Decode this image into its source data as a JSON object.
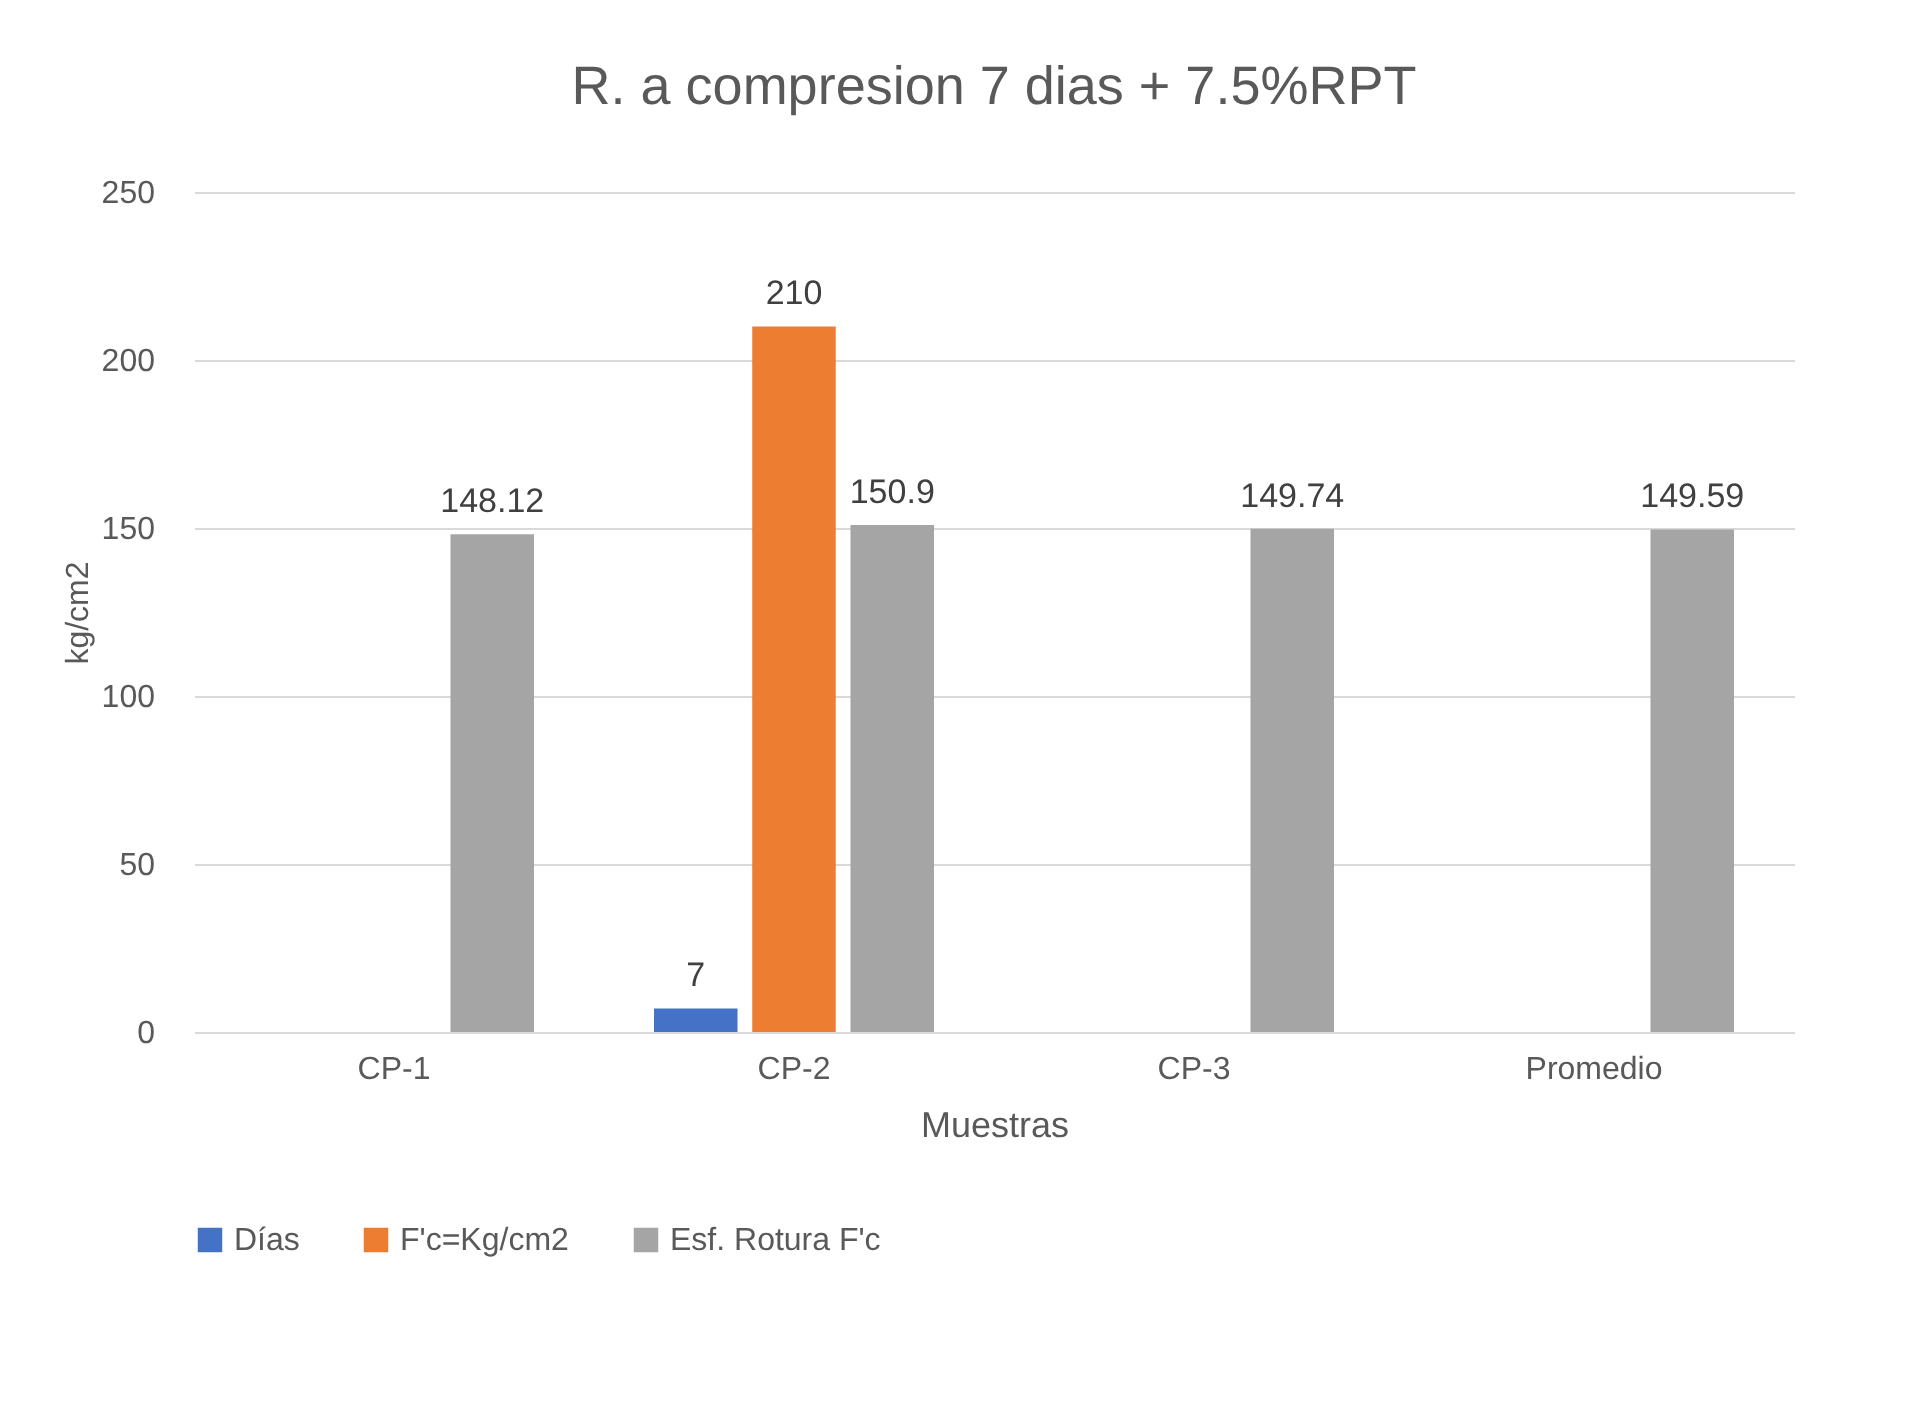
{
  "chart_data": {
    "type": "bar",
    "title": "R. a compresion 7 dias + 7.5%RPT",
    "xlabel": "Muestras",
    "ylabel": "kg/cm2",
    "categories": [
      "CP-1",
      "CP-2",
      "CP-3",
      "Promedio"
    ],
    "series": [
      {
        "name": "Días",
        "color": "#4472c4",
        "values": [
          null,
          7,
          null,
          null
        ]
      },
      {
        "name": "F'c=Kg/cm2",
        "color": "#ed7d31",
        "values": [
          null,
          210,
          null,
          null
        ]
      },
      {
        "name": "Esf. Rotura F'c",
        "color": "#a5a5a5",
        "values": [
          148.12,
          150.9,
          149.74,
          149.59
        ]
      }
    ],
    "ylim": [
      0,
      250
    ],
    "yticks": [
      0,
      50,
      100,
      150,
      200,
      250
    ],
    "grid": "y",
    "legend": "bottom",
    "data_labels": true
  }
}
